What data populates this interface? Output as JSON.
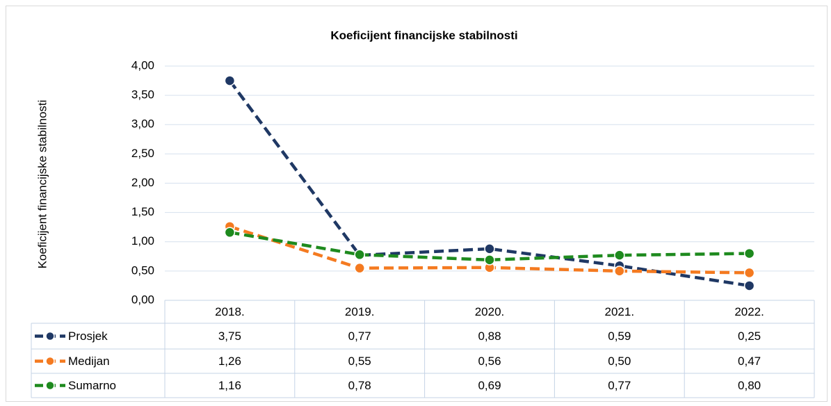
{
  "chart_data": {
    "type": "line",
    "title": "Koeficijent financijske stabilnosti",
    "y_label": "Koeficijent financijske stabilnosti",
    "categories": [
      "2018.",
      "2019.",
      "2020.",
      "2021.",
      "2022."
    ],
    "series": [
      {
        "name": "Prosjek",
        "color": "#1f3864",
        "values": [
          3.75,
          0.77,
          0.88,
          0.59,
          0.25
        ],
        "value_labels": [
          "3,75",
          "0,77",
          "0,88",
          "0,59",
          "0,25"
        ]
      },
      {
        "name": "Medijan",
        "color": "#f47a20",
        "values": [
          1.26,
          0.55,
          0.56,
          0.5,
          0.47
        ],
        "value_labels": [
          "1,26",
          "0,55",
          "0,56",
          "0,50",
          "0,47"
        ]
      },
      {
        "name": "Sumarno",
        "color": "#1e8a1e",
        "values": [
          1.16,
          0.78,
          0.69,
          0.77,
          0.8
        ],
        "value_labels": [
          "1,16",
          "0,78",
          "0,69",
          "0,77",
          "0,80"
        ]
      }
    ],
    "ylim": [
      0,
      4
    ],
    "yticks": [
      {
        "value": 0,
        "label": "0,00"
      },
      {
        "value": 0.5,
        "label": "0,50"
      },
      {
        "value": 1,
        "label": "1,00"
      },
      {
        "value": 1.5,
        "label": "1,50"
      },
      {
        "value": 2,
        "label": "2,00"
      },
      {
        "value": 2.5,
        "label": "2,50"
      },
      {
        "value": 3,
        "label": "3,00"
      },
      {
        "value": 3.5,
        "label": "3,50"
      },
      {
        "value": 4,
        "label": "4,00"
      }
    ],
    "grid": true,
    "data_table": true
  }
}
